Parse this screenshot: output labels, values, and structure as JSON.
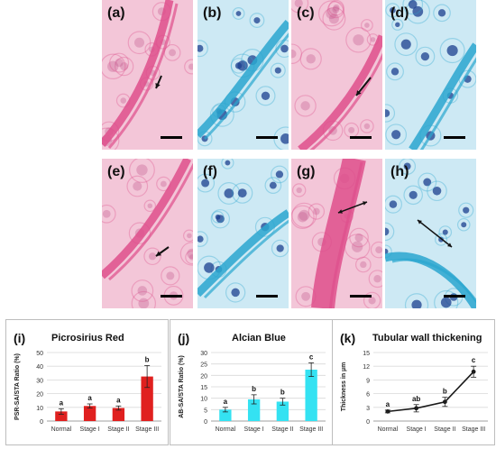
{
  "micrographs": [
    {
      "label": "(a)",
      "stain": "pink"
    },
    {
      "label": "(b)",
      "stain": "blue"
    },
    {
      "label": "(c)",
      "stain": "pink"
    },
    {
      "label": "(d)",
      "stain": "blue"
    },
    {
      "label": "(e)",
      "stain": "pink"
    },
    {
      "label": "(f)",
      "stain": "blue"
    },
    {
      "label": "(g)",
      "stain": "pink"
    },
    {
      "label": "(h)",
      "stain": "blue"
    }
  ],
  "colors": {
    "pink_bg": "#f3c6d8",
    "pink_fiber": "#de4f8c",
    "pink_nucleus": "#c25a90",
    "blue_bg": "#cde9f4",
    "blue_fiber": "#2aa6cf",
    "blue_nucleus": "#1b3f8f",
    "bar_red": "#e0201f",
    "bar_cyan": "#34e2f2",
    "line_black": "#1a1a1a"
  },
  "chart_data": [
    {
      "panel": "(i)",
      "type": "bar",
      "title": "Picrosirius Red",
      "ylabel": "PSR-SA/STA Ratio (%)",
      "xlabel": "",
      "categories": [
        "Normal",
        "Stage I",
        "Stage II",
        "Stage III"
      ],
      "values": [
        7,
        11,
        9.5,
        32.5
      ],
      "errors": [
        2,
        1.5,
        1.5,
        8
      ],
      "letters": [
        "a",
        "a",
        "a",
        "b"
      ],
      "ylim": [
        0,
        50
      ],
      "yticks": [
        "0",
        "10",
        "20",
        "30",
        "40",
        "50"
      ],
      "grid": true,
      "color": "#e0201f"
    },
    {
      "panel": "(j)",
      "type": "bar",
      "title": "Alcian Blue",
      "ylabel": "AB-SA/STA Ratio (%)",
      "xlabel": "",
      "categories": [
        "Normal",
        "Stage I",
        "Stage II",
        "Stage III"
      ],
      "values": [
        5,
        9.5,
        8.5,
        22.5
      ],
      "errors": [
        1,
        2,
        1.5,
        3
      ],
      "letters": [
        "a",
        "b",
        "b",
        "c"
      ],
      "ylim": [
        0,
        30
      ],
      "yticks": [
        "0",
        "5",
        "10",
        "15",
        "20",
        "25",
        "30"
      ],
      "grid": true,
      "color": "#34e2f2"
    },
    {
      "panel": "(k)",
      "type": "line",
      "title": "Tubular wall thickening",
      "ylabel": "Thickness in µm",
      "xlabel": "",
      "categories": [
        "Normal",
        "Stage I",
        "Stage II",
        "Stage III"
      ],
      "values": [
        2.1,
        2.8,
        4.2,
        10.8
      ],
      "errors": [
        0.3,
        0.8,
        1,
        1.2
      ],
      "letters": [
        "a",
        "ab",
        "b",
        "c"
      ],
      "ylim": [
        0,
        15
      ],
      "yticks": [
        "0",
        "3",
        "6",
        "9",
        "12",
        "15"
      ],
      "grid": true,
      "color": "#1a1a1a"
    }
  ]
}
